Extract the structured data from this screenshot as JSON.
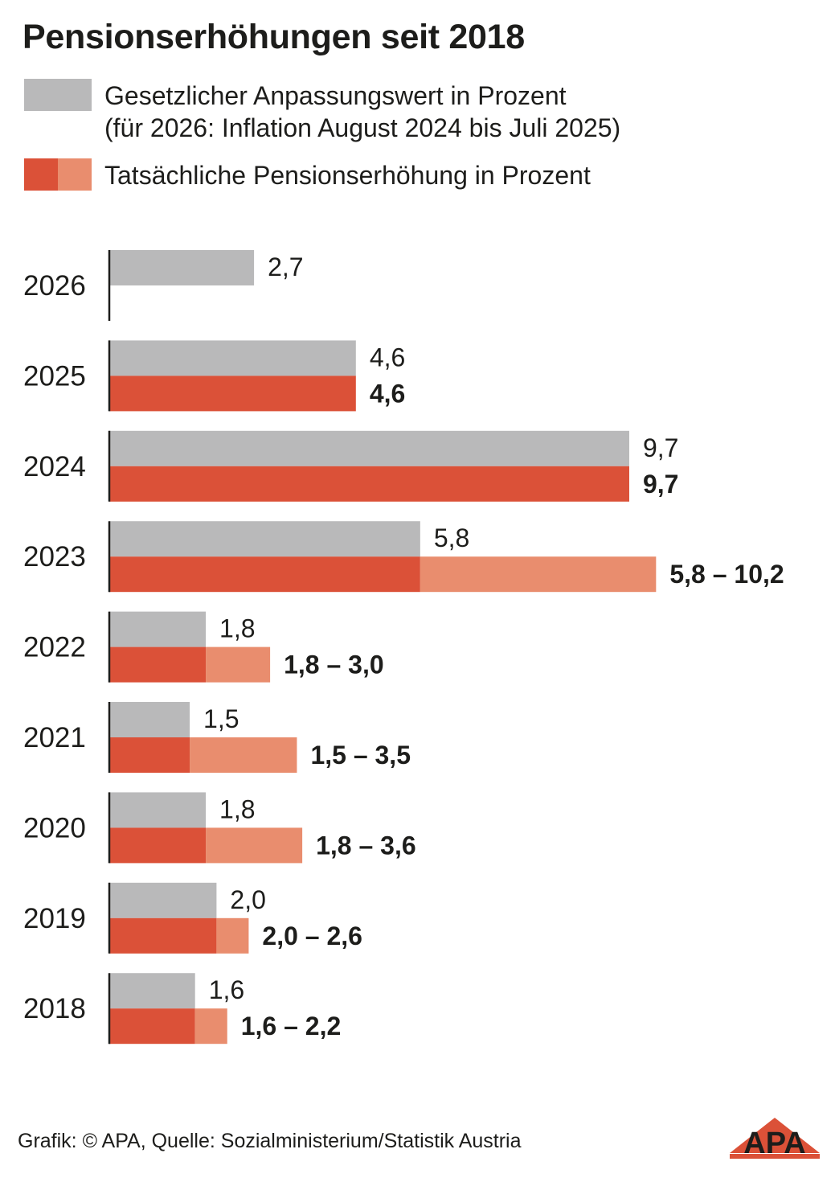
{
  "title": "Pensionserhöhungen seit 2018",
  "legend": {
    "statutory": {
      "line1": "Gesetzlicher Anpassungswert in Prozent",
      "line2": "(für 2026: Inflation August 2024 bis Juli 2025)"
    },
    "actual": {
      "line1": "Tatsächliche Pensionserhöhung in Prozent"
    }
  },
  "colors": {
    "statutory": "#b9b9ba",
    "actual_base": "#db5138",
    "actual_extra": "#e98d6e",
    "axis": "#1d1d1b",
    "text": "#1d1d1b"
  },
  "chart_data": {
    "type": "bar",
    "orientation": "horizontal",
    "categories": [
      "2026",
      "2025",
      "2024",
      "2023",
      "2022",
      "2021",
      "2020",
      "2019",
      "2018"
    ],
    "series": [
      {
        "name": "Gesetzlicher Anpassungswert in Prozent",
        "values": [
          2.7,
          4.6,
          9.7,
          5.8,
          1.8,
          1.5,
          1.8,
          2.0,
          1.6
        ],
        "labels": [
          "2,7",
          "4,6",
          "9,7",
          "5,8",
          "1,8",
          "1,5",
          "1,8",
          "2,0",
          "1,6"
        ]
      },
      {
        "name": "Tatsächliche Pensionserhöhung in Prozent",
        "min": [
          null,
          4.6,
          9.7,
          5.8,
          1.8,
          1.5,
          1.8,
          2.0,
          1.6
        ],
        "max": [
          null,
          4.6,
          9.7,
          10.2,
          3.0,
          3.5,
          3.6,
          2.6,
          2.2
        ],
        "labels": [
          null,
          "4,6",
          "9,7",
          "5,8 – 10,2",
          "1,8 – 3,0",
          "1,5 – 3,5",
          "1,8 – 3,6",
          "2,0 – 2,6",
          "1,6 – 2,2"
        ]
      }
    ],
    "xlim": [
      0,
      10.2
    ],
    "grid": false,
    "legend_position": "top-left"
  },
  "footer": {
    "credit": "Grafik: © APA, Quelle: Sozialministerium/Statistik Austria",
    "logo_text": "APA"
  }
}
